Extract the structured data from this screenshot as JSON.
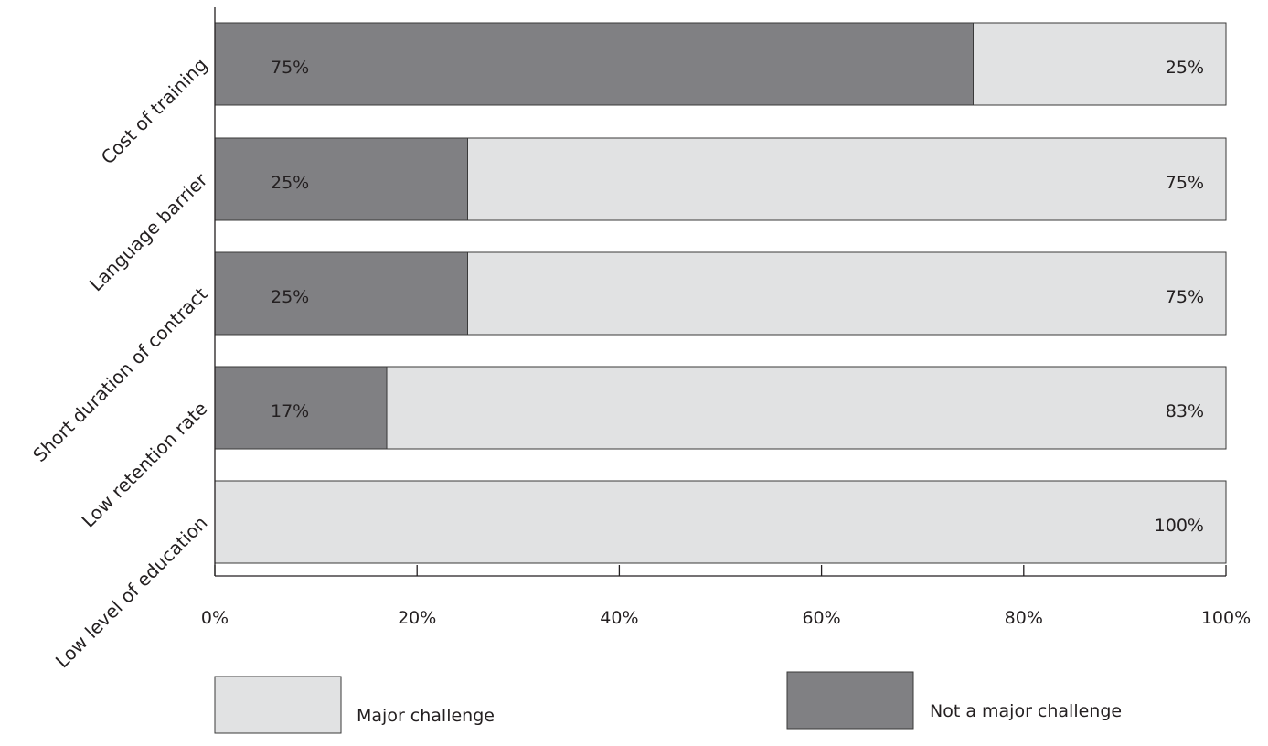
{
  "chart_data": {
    "type": "bar",
    "orientation": "horizontal",
    "stacked": true,
    "categories": [
      "Cost of training",
      "Language barrier",
      "Short duration of contract",
      "Low retention rate",
      "Low level of education"
    ],
    "series": [
      {
        "name": "Not a major challenge",
        "color": "#808083",
        "values": [
          75,
          25,
          25,
          17,
          0
        ],
        "labels": [
          "75%",
          "25%",
          "25%",
          "17%",
          ""
        ]
      },
      {
        "name": "Major challenge",
        "color": "#e1e2e3",
        "values": [
          25,
          75,
          75,
          83,
          100
        ],
        "labels": [
          "25%",
          "75%",
          "75%",
          "83%",
          "100%"
        ]
      }
    ],
    "x_ticks": [
      "0%",
      "20%",
      "40%",
      "60%",
      "80%",
      "100%"
    ],
    "xlim": [
      0,
      100
    ],
    "legend": {
      "placement": "bottom",
      "items": [
        {
          "name": "Major challenge",
          "color": "#e1e2e3"
        },
        {
          "name": "Not a major challenge",
          "color": "#808083"
        }
      ]
    },
    "grid": false
  }
}
